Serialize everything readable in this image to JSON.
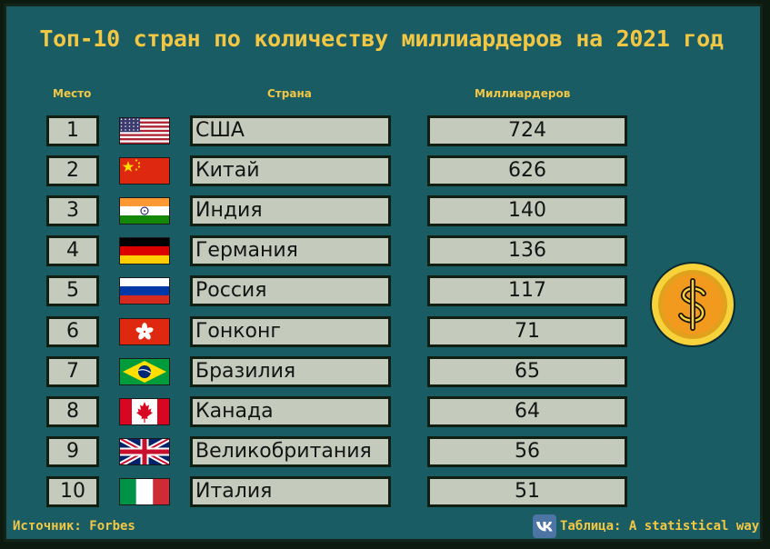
{
  "title": "Топ-10 стран по количеству миллиардеров на 2021 год",
  "columns": {
    "rank": "Место",
    "country": "Страна",
    "count": "Миллиардеров"
  },
  "chart_data": {
    "type": "table",
    "title": "Топ-10 стран по количеству миллиардеров на 2021 год",
    "columns": [
      "Место",
      "Страна",
      "Миллиардеров"
    ],
    "rows": [
      {
        "rank": "1",
        "country": "США",
        "count": "724",
        "flag": "usa-flag-icon"
      },
      {
        "rank": "2",
        "country": "Китай",
        "count": "626",
        "flag": "china-flag-icon"
      },
      {
        "rank": "3",
        "country": "Индия",
        "count": "140",
        "flag": "india-flag-icon"
      },
      {
        "rank": "4",
        "country": "Германия",
        "count": "136",
        "flag": "germany-flag-icon"
      },
      {
        "rank": "5",
        "country": "Россия",
        "count": "117",
        "flag": "russia-flag-icon"
      },
      {
        "rank": "6",
        "country": "Гонконг",
        "count": "71",
        "flag": "hong-kong-flag-icon"
      },
      {
        "rank": "7",
        "country": "Бразилия",
        "count": "65",
        "flag": "brazil-flag-icon"
      },
      {
        "rank": "8",
        "country": "Канада",
        "count": "64",
        "flag": "canada-flag-icon"
      },
      {
        "rank": "9",
        "country": "Великобритания",
        "count": "56",
        "flag": "uk-flag-icon"
      },
      {
        "rank": "10",
        "country": "Италия",
        "count": "51",
        "flag": "italy-flag-icon"
      }
    ]
  },
  "footer": {
    "source": "Источник: Forbes",
    "credit": "Таблица: A statistical way"
  },
  "icons": {
    "coin": "dollar-coin-icon",
    "vk": "vk-logo-icon"
  },
  "colors": {
    "background": "#1a5c64",
    "accent": "#f2c744",
    "cell": "#c4cbbd",
    "border": "#101f12"
  }
}
